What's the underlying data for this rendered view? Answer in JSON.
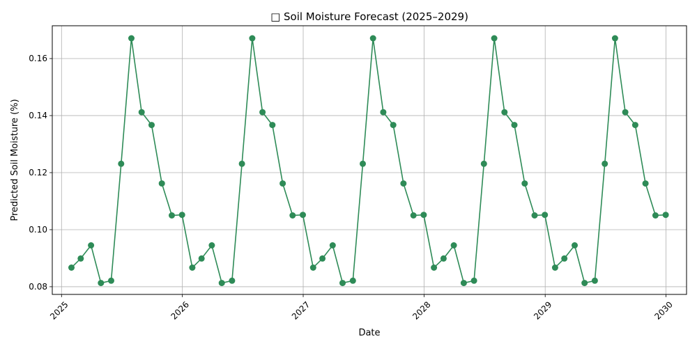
{
  "chart_data": {
    "type": "line",
    "title": "□ Soil Moisture Forecast (2025–2029)",
    "xlabel": "Date",
    "ylabel": "Predicted Soil Moisture (%)",
    "x_ticks": [
      "2025",
      "2026",
      "2027",
      "2028",
      "2029",
      "2030"
    ],
    "y_ticks": [
      "0.08",
      "0.10",
      "0.12",
      "0.14",
      "0.16"
    ],
    "xlim": [
      "2024-12-04",
      "2030-03-04"
    ],
    "ylim": [
      0.0773,
      0.1715
    ],
    "grid": true,
    "line_color": "#2e8b57",
    "series": [
      {
        "x": [
          "2025-01-31",
          "2025-02-28",
          "2025-03-31",
          "2025-04-30",
          "2025-05-31",
          "2025-06-30",
          "2025-07-31",
          "2025-08-31",
          "2025-09-30",
          "2025-10-31",
          "2025-11-30",
          "2025-12-31",
          "2026-01-31",
          "2026-02-28",
          "2026-03-31",
          "2026-04-30",
          "2026-05-31",
          "2026-06-30",
          "2026-07-31",
          "2026-08-31",
          "2026-09-30",
          "2026-10-31",
          "2026-11-30",
          "2026-12-31",
          "2027-01-31",
          "2027-02-28",
          "2027-03-31",
          "2027-04-30",
          "2027-05-31",
          "2027-06-30",
          "2027-07-31",
          "2027-08-31",
          "2027-09-30",
          "2027-10-31",
          "2027-11-30",
          "2027-12-31",
          "2028-01-31",
          "2028-02-29",
          "2028-03-31",
          "2028-04-30",
          "2028-05-31",
          "2028-06-30",
          "2028-07-31",
          "2028-08-31",
          "2028-09-30",
          "2028-10-31",
          "2028-11-30",
          "2028-12-31",
          "2029-01-31",
          "2029-02-28",
          "2029-03-31",
          "2029-04-30",
          "2029-05-31",
          "2029-06-30",
          "2029-07-31",
          "2029-08-31",
          "2029-09-30",
          "2029-10-31",
          "2029-11-30",
          "2029-12-31"
        ],
        "values": [
          0.0867,
          0.0899,
          0.0945,
          0.0813,
          0.0821,
          0.1231,
          0.1671,
          0.1412,
          0.1367,
          0.1162,
          0.105,
          0.1052,
          0.0867,
          0.0899,
          0.0945,
          0.0813,
          0.0821,
          0.1231,
          0.1671,
          0.1412,
          0.1367,
          0.1162,
          0.105,
          0.1052,
          0.0867,
          0.0899,
          0.0945,
          0.0813,
          0.0821,
          0.1231,
          0.1671,
          0.1412,
          0.1367,
          0.1162,
          0.105,
          0.1052,
          0.0867,
          0.0899,
          0.0945,
          0.0813,
          0.0821,
          0.1231,
          0.1671,
          0.1412,
          0.1367,
          0.1162,
          0.105,
          0.1052,
          0.0867,
          0.0899,
          0.0945,
          0.0813,
          0.0821,
          0.1231,
          0.1671,
          0.1412,
          0.1367,
          0.1162,
          0.105,
          0.1052
        ]
      }
    ]
  }
}
